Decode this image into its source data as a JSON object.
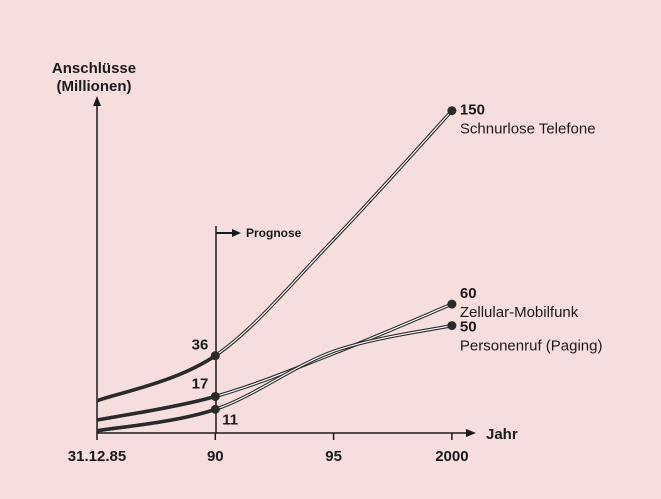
{
  "chart_data": {
    "type": "line",
    "ylabel": [
      "Anschlüsse",
      "(Millionen)"
    ],
    "xlabel": "Jahr",
    "annotation": "Prognose",
    "categories": [
      "31.12.85",
      "90",
      "95",
      "2000"
    ],
    "ylim": [
      0,
      155
    ],
    "series": [
      {
        "name": "Schnurlose Telefone",
        "color": "#2a2a2a",
        "values": [
          15,
          36,
          90,
          150
        ]
      },
      {
        "name": "Zellular-Mobilfunk",
        "color": "#2a2a2a",
        "values": [
          6,
          17,
          37,
          60
        ]
      },
      {
        "name": "Personenruf (Paging)",
        "color": "#2a2a2a",
        "values": [
          1,
          11,
          38,
          50
        ]
      }
    ]
  }
}
